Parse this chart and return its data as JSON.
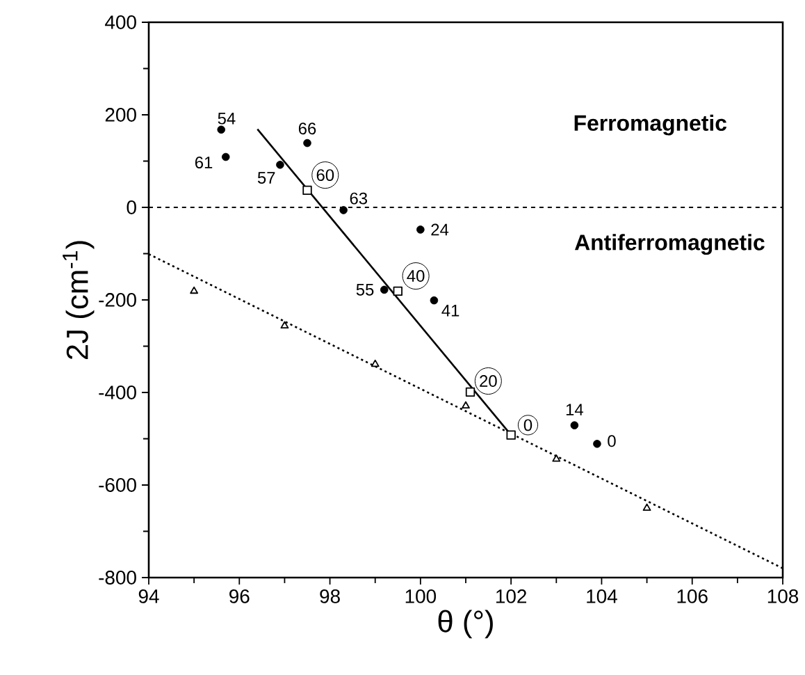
{
  "chart_data": {
    "type": "scatter",
    "xlabel": "θ (°)",
    "ylabel": "2J (cm$^{-1}$)",
    "xlim": [
      94,
      108
    ],
    "xticks": [
      94,
      96,
      98,
      100,
      102,
      104,
      106,
      108
    ],
    "ylim": [
      -800,
      400
    ],
    "yticks": [
      -800,
      -600,
      -400,
      -200,
      0,
      200,
      400
    ],
    "grid": false,
    "series": [
      {
        "marker": "circle",
        "color": "#000000",
        "x": [
          95.6,
          95.7,
          96.9,
          97.5,
          98.3,
          100.0,
          99.2,
          100.3,
          103.4,
          103.9
        ],
        "values": [
          168,
          109,
          92,
          139,
          -6,
          -48,
          -178,
          -201,
          -471,
          -511
        ]
      },
      {
        "marker": "square",
        "color": "#000000",
        "x": [
          97.5,
          99.5,
          101.1,
          102.0
        ],
        "values": [
          37,
          -181,
          -399,
          -492
        ]
      },
      {
        "type": "line",
        "marker": "none",
        "line_style": "solid",
        "color": "#000000",
        "x": [
          96.4,
          102.0
        ],
        "values": [
          169,
          -492
        ]
      },
      {
        "marker": "triangle",
        "color": "#000000",
        "x": [
          95,
          97,
          99,
          101,
          103,
          105
        ],
        "values": [
          -181,
          -256,
          -339,
          -429,
          -544,
          -650
        ]
      },
      {
        "type": "line",
        "marker": "none",
        "line_style": "dotted",
        "color": "#000000",
        "x": [
          94,
          108
        ],
        "values": [
          -101,
          -780
        ]
      }
    ],
    "ref_lines": [
      {
        "axis": "y",
        "value": 0,
        "line_style": "dashed"
      }
    ],
    "annotations": [
      "Ferromagnetic",
      "Antiferromagnetic",
      {
        "text": "54",
        "x": 95.6,
        "y": 168
      },
      {
        "text": "61",
        "x": 95.7,
        "y": 109
      },
      {
        "text": "57",
        "x": 96.9,
        "y": 92
      },
      {
        "text": "66",
        "x": 97.5,
        "y": 139
      },
      {
        "text": "63",
        "x": 98.3,
        "y": -6
      },
      {
        "text": "24",
        "x": 100.0,
        "y": -48
      },
      {
        "text": "55",
        "x": 99.2,
        "y": -178
      },
      {
        "text": "41",
        "x": 100.3,
        "y": -201
      },
      {
        "text": "14",
        "x": 103.4,
        "y": -471
      },
      {
        "text": "0",
        "x": 103.9,
        "y": -511
      },
      {
        "text": "60",
        "x": 97.5,
        "y": 37
      },
      {
        "text": "40",
        "x": 99.5,
        "y": -181
      },
      {
        "text": "20",
        "x": 101.1,
        "y": -399
      },
      {
        "text": "0",
        "x": 102.0,
        "y": -492
      }
    ]
  }
}
